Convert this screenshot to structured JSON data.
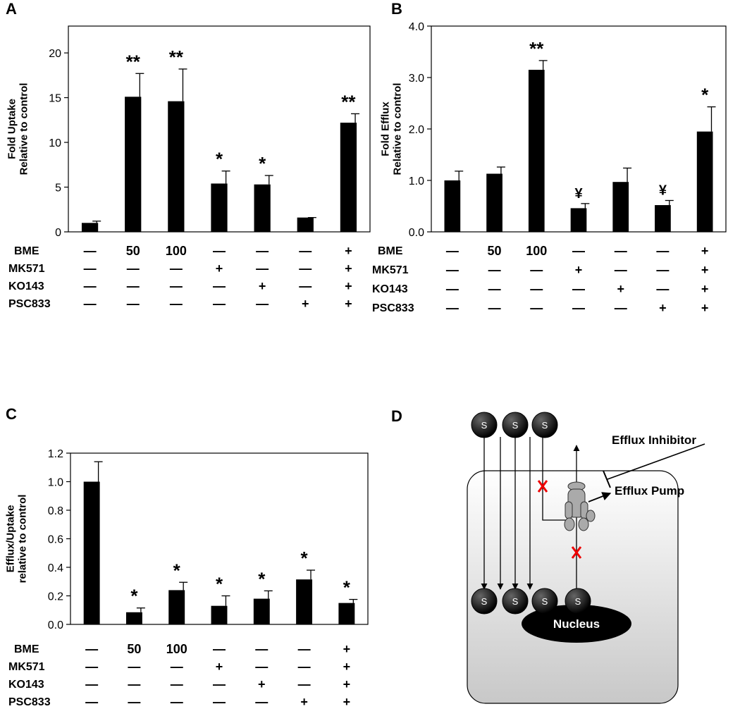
{
  "chart_data": [
    {
      "type": "bar",
      "panel": "A",
      "ylabel": [
        "Fold Uptake",
        "Relative to control"
      ],
      "color": "#000000",
      "values": [
        1.0,
        15.1,
        14.6,
        5.4,
        5.3,
        1.6,
        12.2
      ],
      "errors": [
        0.2,
        2.6,
        3.6,
        1.4,
        1.0,
        0,
        1.0
      ],
      "annotations": [
        null,
        "**",
        "**",
        "*",
        "*",
        null,
        "**"
      ],
      "ylim": [
        0,
        23
      ],
      "yticks": [
        0,
        5,
        10,
        15,
        20
      ],
      "treatments": [
        {
          "name": "BME",
          "values": [
            "—",
            "50",
            "100",
            "—",
            "—",
            "—",
            "+"
          ]
        },
        {
          "name": "MK571",
          "values": [
            "—",
            "—",
            "—",
            "+",
            "—",
            "—",
            "+"
          ]
        },
        {
          "name": "KO143",
          "values": [
            "—",
            "—",
            "—",
            "—",
            "+",
            "—",
            "+"
          ]
        },
        {
          "name": "PSC833",
          "values": [
            "—",
            "—",
            "—",
            "—",
            "—",
            "+",
            "+"
          ]
        }
      ]
    },
    {
      "type": "bar",
      "panel": "B",
      "ylabel": [
        "Fold Efflux",
        "Relative to control"
      ],
      "color": "#000000",
      "values": [
        1.0,
        1.13,
        3.15,
        0.46,
        0.97,
        0.52,
        1.95
      ],
      "errors": [
        0.18,
        0.13,
        0.18,
        0.09,
        0.27,
        0.09,
        0.48
      ],
      "annotations": [
        null,
        null,
        "**",
        "¥",
        null,
        "¥",
        "*"
      ],
      "ylim": [
        0,
        4
      ],
      "yticks": [
        {
          "value": 0,
          "label": "0.0"
        },
        {
          "value": 1,
          "label": "1.0"
        },
        {
          "value": 2,
          "label": "2.0"
        },
        {
          "value": 3,
          "label": "3.0"
        },
        {
          "value": 4,
          "label": "4.0"
        }
      ],
      "treatments": [
        {
          "name": "BME",
          "values": [
            "—",
            "50",
            "100",
            "—",
            "—",
            "—",
            "+"
          ]
        },
        {
          "name": "MK571",
          "values": [
            "—",
            "—",
            "—",
            "+",
            "—",
            "—",
            "+"
          ]
        },
        {
          "name": "KO143",
          "values": [
            "—",
            "—",
            "—",
            "—",
            "+",
            "—",
            "+"
          ]
        },
        {
          "name": "PSC833",
          "values": [
            "—",
            "—",
            "—",
            "—",
            "—",
            "+",
            "+"
          ]
        }
      ]
    },
    {
      "type": "bar",
      "panel": "C",
      "ylabel": [
        "Efflux/Uptake",
        "relative to control"
      ],
      "color": "#000000",
      "values": [
        1.0,
        0.085,
        0.24,
        0.13,
        0.18,
        0.315,
        0.15
      ],
      "errors": [
        0.14,
        0.03,
        0.055,
        0.07,
        0.055,
        0.065,
        0.025
      ],
      "annotations": [
        null,
        "*",
        "*",
        "*",
        "*",
        "*",
        "*"
      ],
      "ylim": [
        0,
        1.2
      ],
      "yticks": [
        {
          "value": 0,
          "label": "0.0"
        },
        {
          "value": 0.2,
          "label": "0.2"
        },
        {
          "value": 0.4,
          "label": "0.4"
        },
        {
          "value": 0.6,
          "label": "0.6"
        },
        {
          "value": 0.8,
          "label": "0.8"
        },
        {
          "value": 1.0,
          "label": "1.0"
        },
        {
          "value": 1.2,
          "label": "1.2"
        }
      ],
      "treatments": [
        {
          "name": "BME",
          "values": [
            "—",
            "50",
            "100",
            "—",
            "—",
            "—",
            "+"
          ]
        },
        {
          "name": "MK571",
          "values": [
            "—",
            "—",
            "—",
            "+",
            "—",
            "—",
            "+"
          ]
        },
        {
          "name": "KO143",
          "values": [
            "—",
            "—",
            "—",
            "—",
            "+",
            "—",
            "+"
          ]
        },
        {
          "name": "PSC833",
          "values": [
            "—",
            "—",
            "—",
            "—",
            "—",
            "+",
            "+"
          ]
        }
      ]
    }
  ],
  "diagram": {
    "panel": "D",
    "substrate": "S",
    "inhibitor": "Efflux Inhibitor",
    "pump": "Efflux Pump",
    "nucleus": "Nucleus"
  }
}
